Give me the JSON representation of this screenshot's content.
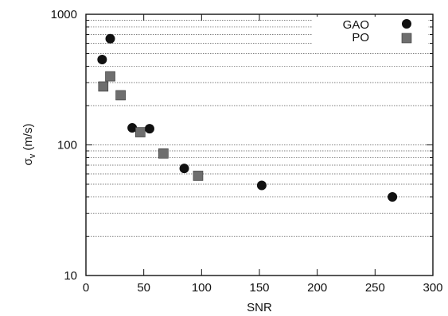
{
  "chart_data": {
    "type": "scatter",
    "title": "",
    "xlabel": "SNR",
    "ylabel": "σ",
    "ylabel_sub": "v",
    "ylabel_unit": " (m/s)",
    "xlim": [
      0,
      300
    ],
    "ylim": [
      10,
      1000
    ],
    "yscale": "log",
    "grid": true,
    "legend_position": "top-right",
    "x_ticks": [
      0,
      50,
      100,
      150,
      200,
      250,
      300
    ],
    "x_tick_labels": [
      "0",
      "50",
      "100",
      "150",
      "200",
      "250",
      "300"
    ],
    "y_ticks": [
      10,
      100,
      1000
    ],
    "y_tick_labels": [
      "10",
      "100",
      "1000"
    ],
    "series": [
      {
        "name": "GAO",
        "marker": "circle",
        "color": "#111111",
        "points": [
          {
            "x": 21,
            "y": 650
          },
          {
            "x": 14,
            "y": 450
          },
          {
            "x": 40,
            "y": 135
          },
          {
            "x": 55,
            "y": 133
          },
          {
            "x": 85,
            "y": 66
          },
          {
            "x": 152,
            "y": 49
          },
          {
            "x": 265,
            "y": 40
          }
        ]
      },
      {
        "name": "PO",
        "marker": "square",
        "color": "#6e6e6e",
        "points": [
          {
            "x": 21,
            "y": 335
          },
          {
            "x": 15,
            "y": 280
          },
          {
            "x": 30,
            "y": 240
          },
          {
            "x": 47,
            "y": 125
          },
          {
            "x": 67,
            "y": 86
          },
          {
            "x": 97,
            "y": 58
          }
        ]
      }
    ]
  }
}
